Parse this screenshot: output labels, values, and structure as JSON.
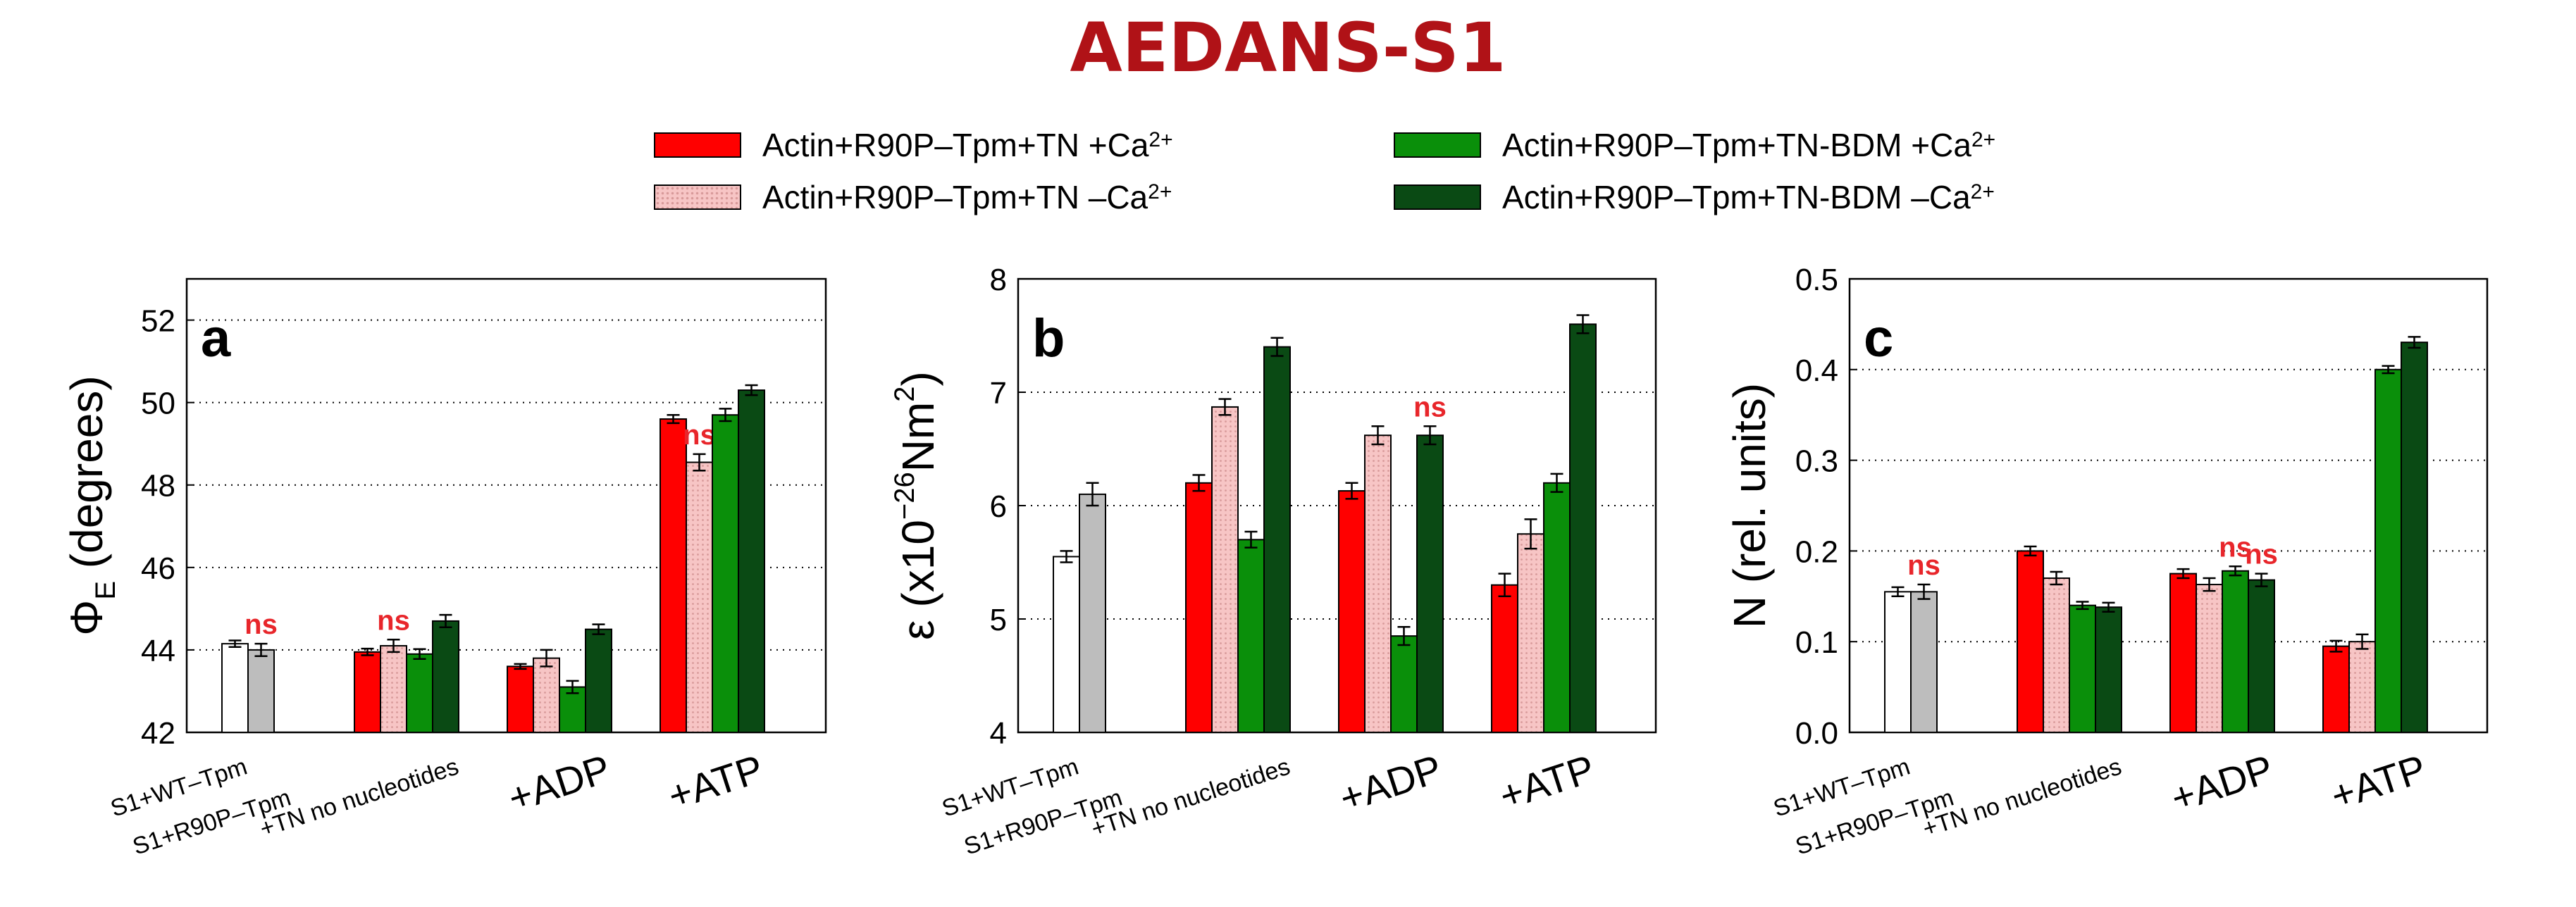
{
  "title": "AEDANS-S1",
  "legend": [
    {
      "label": "Actin+R90P–Tpm+TN +Ca",
      "sup": "2+",
      "color": "#ff0000",
      "pattern": "solid"
    },
    {
      "label": "Actin+R90P–Tpm+TN –Ca",
      "sup": "2+",
      "color": "#f7c5c5",
      "pattern": "dots"
    },
    {
      "label": "Actin+R90P–Tpm+TN-BDM +Ca",
      "sup": "2+",
      "color": "#0a8f0a",
      "pattern": "solid"
    },
    {
      "label": "Actin+R90P–Tpm+TN-BDM –Ca",
      "sup": "2+",
      "color": "#0a4a14",
      "pattern": "solid"
    }
  ],
  "colors": {
    "s1_wt": "#ffffff",
    "s1_r90p": "#bdbdbd",
    "ns_label": "#e8262b",
    "title": "#b01217"
  },
  "chart_data": [
    {
      "type": "bar",
      "panel_label": "a",
      "ylabel": "ΦE (degrees)",
      "ylabel_main": "Φ",
      "ylabel_sub": "E",
      "ylabel_rest": " (degrees)",
      "ylim": [
        42,
        53
      ],
      "yticks": [
        42,
        44,
        46,
        48,
        50,
        52
      ],
      "ytick_labels": [
        "42",
        "44",
        "46",
        "48",
        "50",
        "52"
      ],
      "grid": "horizontal dotted",
      "categories": [
        "S1+WT–Tpm",
        "S1+R90P–Tpm",
        "+TN no nucleotides",
        "+ADP",
        "+ATP"
      ],
      "groups": [
        {
          "category": "S1",
          "bars": [
            {
              "series": "S1+WT–Tpm",
              "value": 44.15,
              "err": 0.08
            },
            {
              "series": "S1+R90P–Tpm",
              "value": 44.0,
              "err": 0.15
            }
          ],
          "ns_after": [
            1
          ]
        },
        {
          "category": "+TN no nucleotides",
          "bars": [
            {
              "series": "Actin+R90P–Tpm+TN +Ca2+",
              "value": 43.95,
              "err": 0.08
            },
            {
              "series": "Actin+R90P–Tpm+TN –Ca2+",
              "value": 44.1,
              "err": 0.15
            },
            {
              "series": "Actin+R90P–Tpm+TN-BDM +Ca2+",
              "value": 43.9,
              "err": 0.12
            },
            {
              "series": "Actin+R90P–Tpm+TN-BDM –Ca2+",
              "value": 44.7,
              "err": 0.15
            }
          ],
          "ns_after": [
            1
          ]
        },
        {
          "category": "+ADP",
          "bars": [
            {
              "series": "Actin+R90P–Tpm+TN +Ca2+",
              "value": 43.6,
              "err": 0.06
            },
            {
              "series": "Actin+R90P–Tpm+TN –Ca2+",
              "value": 43.8,
              "err": 0.2
            },
            {
              "series": "Actin+R90P–Tpm+TN-BDM +Ca2+",
              "value": 43.1,
              "err": 0.15
            },
            {
              "series": "Actin+R90P–Tpm+TN-BDM –Ca2+",
              "value": 44.5,
              "err": 0.12
            }
          ],
          "ns_after": []
        },
        {
          "category": "+ATP",
          "bars": [
            {
              "series": "Actin+R90P–Tpm+TN +Ca2+",
              "value": 49.6,
              "err": 0.1
            },
            {
              "series": "Actin+R90P–Tpm+TN –Ca2+",
              "value": 48.55,
              "err": 0.2
            },
            {
              "series": "Actin+R90P–Tpm+TN-BDM +Ca2+",
              "value": 49.7,
              "err": 0.15
            },
            {
              "series": "Actin+R90P–Tpm+TN-BDM –Ca2+",
              "value": 50.3,
              "err": 0.12
            }
          ],
          "ns_after": [
            1
          ]
        }
      ],
      "ns_text": "ns"
    },
    {
      "type": "bar",
      "panel_label": "b",
      "ylabel": "ε (x10⁻²⁶Nm²)",
      "ylabel_main": "ε (x10",
      "ylabel_sup1": "−26",
      "ylabel_mid": "Nm",
      "ylabel_sup2": "2",
      "ylabel_rest": ")",
      "ylim": [
        4,
        8
      ],
      "yticks": [
        4,
        5,
        6,
        7,
        8
      ],
      "ytick_labels": [
        "4",
        "5",
        "6",
        "7",
        "8"
      ],
      "grid": "horizontal dotted",
      "categories": [
        "S1+WT–Tpm",
        "S1+R90P–Tpm",
        "+TN no nucleotides",
        "+ADP",
        "+ATP"
      ],
      "groups": [
        {
          "category": "S1",
          "bars": [
            {
              "series": "S1+WT–Tpm",
              "value": 5.55,
              "err": 0.05
            },
            {
              "series": "S1+R90P–Tpm",
              "value": 6.1,
              "err": 0.1
            }
          ],
          "ns_after": []
        },
        {
          "category": "+TN no nucleotides",
          "bars": [
            {
              "series": "Actin+R90P–Tpm+TN +Ca2+",
              "value": 6.2,
              "err": 0.07
            },
            {
              "series": "Actin+R90P–Tpm+TN –Ca2+",
              "value": 6.87,
              "err": 0.07
            },
            {
              "series": "Actin+R90P–Tpm+TN-BDM +Ca2+",
              "value": 5.7,
              "err": 0.07
            },
            {
              "series": "Actin+R90P–Tpm+TN-BDM –Ca2+",
              "value": 7.4,
              "err": 0.08
            }
          ],
          "ns_after": []
        },
        {
          "category": "+ADP",
          "bars": [
            {
              "series": "Actin+R90P–Tpm+TN +Ca2+",
              "value": 6.13,
              "err": 0.07
            },
            {
              "series": "Actin+R90P–Tpm+TN –Ca2+",
              "value": 6.62,
              "err": 0.08
            },
            {
              "series": "Actin+R90P–Tpm+TN-BDM +Ca2+",
              "value": 4.85,
              "err": 0.08
            },
            {
              "series": "Actin+R90P–Tpm+TN-BDM –Ca2+",
              "value": 6.62,
              "err": 0.08
            }
          ],
          "ns_after": [
            3
          ]
        },
        {
          "category": "+ATP",
          "bars": [
            {
              "series": "Actin+R90P–Tpm+TN +Ca2+",
              "value": 5.3,
              "err": 0.1
            },
            {
              "series": "Actin+R90P–Tpm+TN –Ca2+",
              "value": 5.75,
              "err": 0.13
            },
            {
              "series": "Actin+R90P–Tpm+TN-BDM +Ca2+",
              "value": 6.2,
              "err": 0.08
            },
            {
              "series": "Actin+R90P–Tpm+TN-BDM –Ca2+",
              "value": 7.6,
              "err": 0.08
            }
          ],
          "ns_after": []
        }
      ],
      "ns_text": "ns"
    },
    {
      "type": "bar",
      "panel_label": "c",
      "ylabel": "N (rel. units)",
      "ylim": [
        0.0,
        0.5
      ],
      "yticks": [
        0.0,
        0.1,
        0.2,
        0.3,
        0.4,
        0.5
      ],
      "ytick_labels": [
        "0.0",
        "0.1",
        "0.2",
        "0.3",
        "0.4",
        "0.5"
      ],
      "grid": "horizontal dotted",
      "categories": [
        "S1+WT–Tpm",
        "S1+R90P–Tpm",
        "+TN no nucleotides",
        "+ADP",
        "+ATP"
      ],
      "groups": [
        {
          "category": "S1",
          "bars": [
            {
              "series": "S1+WT–Tpm",
              "value": 0.155,
              "err": 0.005
            },
            {
              "series": "S1+R90P–Tpm",
              "value": 0.155,
              "err": 0.008
            }
          ],
          "ns_after": [
            1
          ]
        },
        {
          "category": "+TN no nucleotides",
          "bars": [
            {
              "series": "Actin+R90P–Tpm+TN +Ca2+",
              "value": 0.2,
              "err": 0.005
            },
            {
              "series": "Actin+R90P–Tpm+TN –Ca2+",
              "value": 0.17,
              "err": 0.007
            },
            {
              "series": "Actin+R90P–Tpm+TN-BDM +Ca2+",
              "value": 0.14,
              "err": 0.004
            },
            {
              "series": "Actin+R90P–Tpm+TN-BDM –Ca2+",
              "value": 0.138,
              "err": 0.005
            }
          ],
          "ns_after": []
        },
        {
          "category": "+ADP",
          "bars": [
            {
              "series": "Actin+R90P–Tpm+TN +Ca2+",
              "value": 0.175,
              "err": 0.005
            },
            {
              "series": "Actin+R90P–Tpm+TN –Ca2+",
              "value": 0.163,
              "err": 0.007
            },
            {
              "series": "Actin+R90P–Tpm+TN-BDM +Ca2+",
              "value": 0.178,
              "err": 0.005
            },
            {
              "series": "Actin+R90P–Tpm+TN-BDM –Ca2+",
              "value": 0.168,
              "err": 0.007
            }
          ],
          "ns_after": [
            2,
            3
          ]
        },
        {
          "category": "+ATP",
          "bars": [
            {
              "series": "Actin+R90P–Tpm+TN +Ca2+",
              "value": 0.095,
              "err": 0.006
            },
            {
              "series": "Actin+R90P–Tpm+TN –Ca2+",
              "value": 0.1,
              "err": 0.008
            },
            {
              "series": "Actin+R90P–Tpm+TN-BDM +Ca2+",
              "value": 0.4,
              "err": 0.004
            },
            {
              "series": "Actin+R90P–Tpm+TN-BDM –Ca2+",
              "value": 0.43,
              "err": 0.006
            }
          ],
          "ns_after": []
        }
      ],
      "ns_text": "ns"
    }
  ],
  "x_tick_labels": {
    "s1_wt": "S1+WT–Tpm",
    "s1_r90p": "S1+R90P–Tpm",
    "tn": "+TN no nucleotides",
    "adp": "+ADP",
    "atp": "+ATP"
  }
}
